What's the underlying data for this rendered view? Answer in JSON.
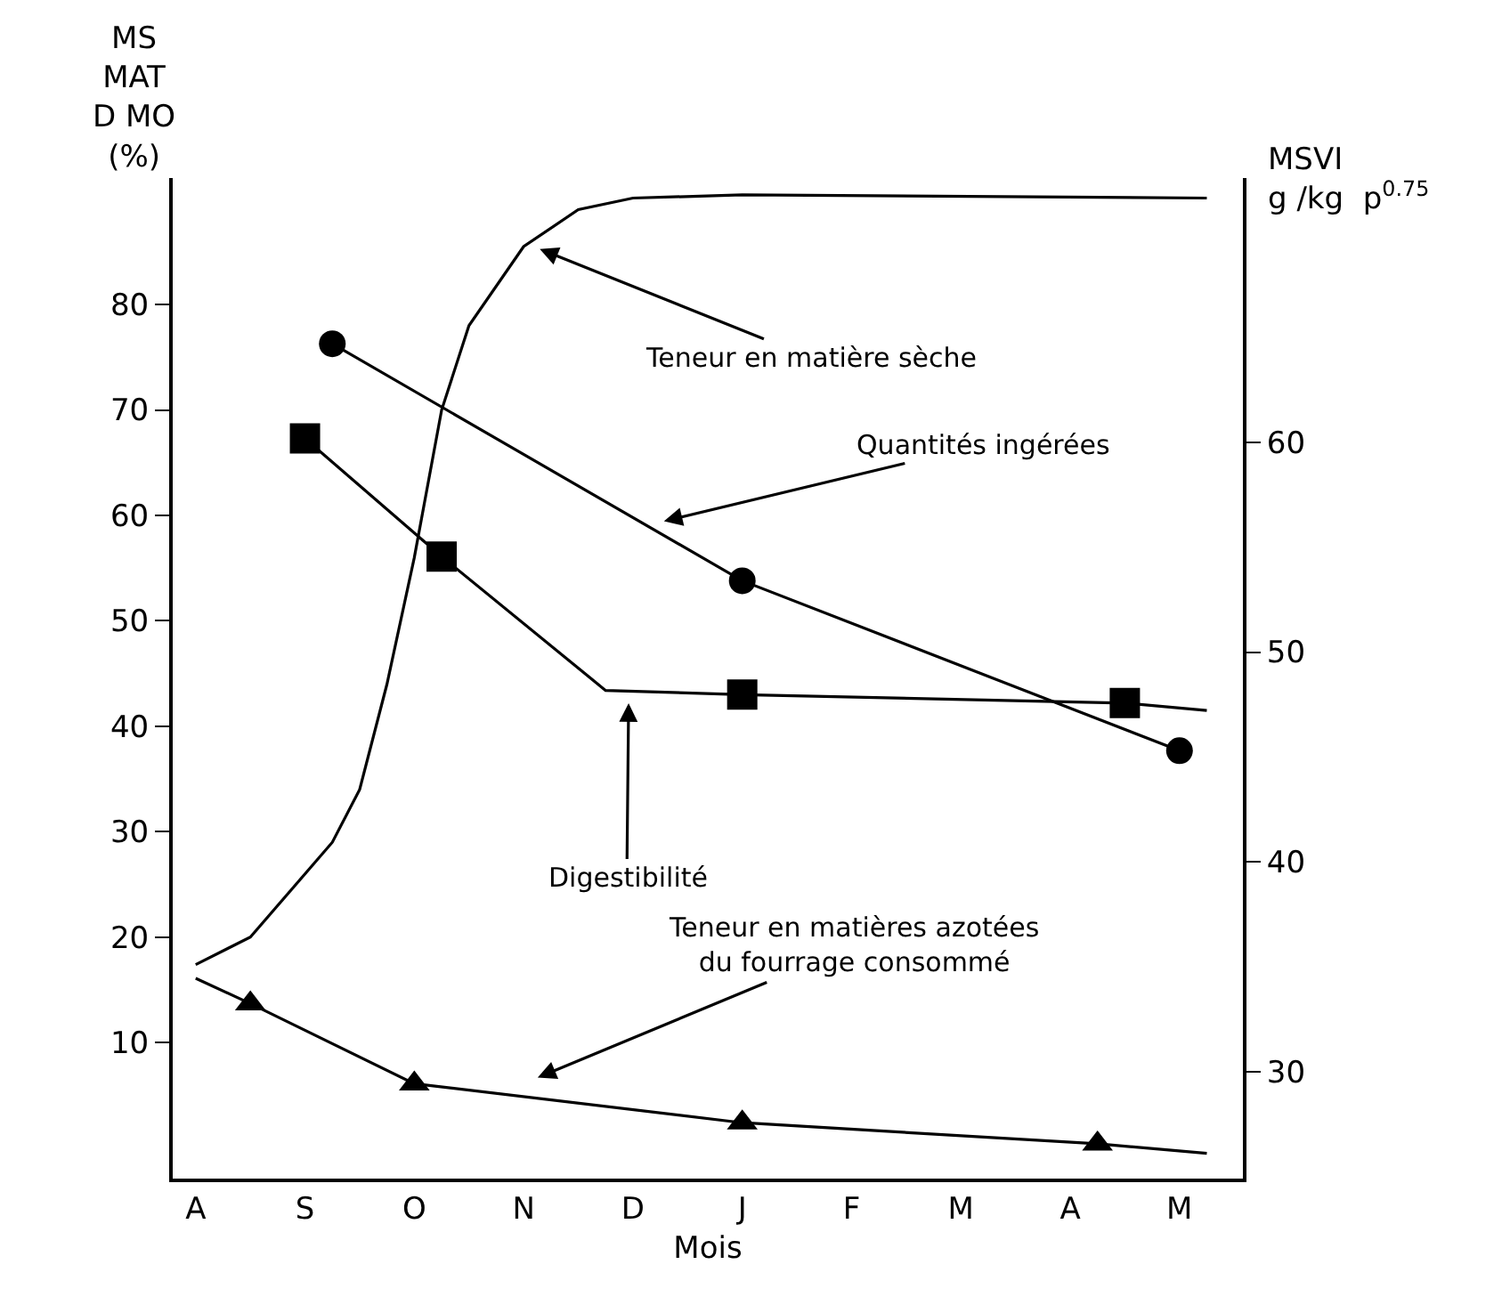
{
  "chart_data": {
    "type": "line",
    "xlabel": "Mois",
    "ylabel": "MS\nMAT\nD MO\n(%)",
    "y2label": "MSVI\ng /kg  p$^{0.75}$",
    "categories": [
      "A",
      null,
      null,
      null,
      "S",
      null,
      null,
      null,
      "O",
      null,
      null,
      null,
      "N",
      null,
      null,
      null,
      "D",
      null,
      null,
      null,
      "J",
      null,
      null,
      null,
      "F",
      null,
      null,
      null,
      "M",
      null,
      null,
      null,
      "A",
      null,
      null,
      null,
      "M",
      null,
      null
    ],
    "ylim": [
      -2.9,
      92
    ],
    "yticks": [
      10,
      20,
      30,
      40,
      50,
      60,
      70,
      80
    ],
    "y2lim": [
      24.9,
      72.6
    ],
    "y2ticks": [
      30,
      40,
      50,
      60
    ],
    "series": [
      {
        "marker": "none",
        "color": "#000000",
        "values": [
          17.4,
          null,
          20.0,
          23.0,
          26.0,
          29.0,
          34.0,
          44.0,
          56.0,
          70.0,
          78.0,
          null,
          85.5,
          null,
          89.0,
          null,
          90.1,
          null,
          null,
          null,
          90.4,
          null,
          null,
          null,
          null,
          null,
          null,
          null,
          null,
          null,
          null,
          null,
          null,
          null,
          null,
          null,
          null,
          90.1,
          null
        ]
      },
      {
        "marker": "circle",
        "axis": "y2",
        "color": "#000000",
        "values": [
          null,
          null,
          null,
          null,
          null,
          64.7,
          null,
          null,
          null,
          null,
          null,
          null,
          null,
          null,
          null,
          null,
          null,
          null,
          null,
          null,
          53.4,
          null,
          null,
          null,
          null,
          null,
          null,
          null,
          null,
          null,
          null,
          null,
          null,
          null,
          null,
          null,
          45.3,
          null,
          null
        ]
      },
      {
        "marker": "none",
        "color": "#000000",
        "values": [
          null,
          null,
          null,
          null,
          67.3,
          null,
          null,
          null,
          null,
          56.1,
          null,
          null,
          null,
          null,
          null,
          43.4,
          null,
          null,
          null,
          null,
          43.0,
          null,
          null,
          null,
          null,
          null,
          null,
          null,
          null,
          null,
          null,
          null,
          null,
          null,
          42.2,
          null,
          null,
          41.5,
          null
        ]
      },
      {
        "type": "scatter",
        "marker": "square",
        "color": "#000000",
        "values": [
          null,
          null,
          null,
          null,
          67.3,
          null,
          null,
          null,
          null,
          56.1,
          null,
          null,
          null,
          null,
          null,
          null,
          null,
          null,
          null,
          null,
          43.0,
          null,
          null,
          null,
          null,
          null,
          null,
          null,
          null,
          null,
          null,
          null,
          null,
          null,
          42.2,
          null,
          null,
          null,
          null
        ]
      },
      {
        "marker": "none",
        "color": "#000000",
        "values": [
          16.1,
          null,
          13.7,
          null,
          null,
          null,
          null,
          null,
          6.1,
          null,
          null,
          null,
          null,
          null,
          null,
          null,
          null,
          null,
          null,
          null,
          2.4,
          null,
          null,
          null,
          null,
          null,
          null,
          null,
          null,
          null,
          null,
          null,
          null,
          0.4,
          null,
          null,
          null,
          -0.5,
          null
        ]
      },
      {
        "type": "scatter",
        "marker": "triangle",
        "color": "#000000",
        "values": [
          null,
          null,
          13.7,
          null,
          null,
          null,
          null,
          null,
          6.1,
          null,
          null,
          null,
          null,
          null,
          null,
          null,
          null,
          null,
          null,
          null,
          2.4,
          null,
          null,
          null,
          null,
          null,
          null,
          null,
          null,
          null,
          null,
          null,
          null,
          0.4,
          null,
          null,
          null,
          null,
          null
        ]
      }
    ],
    "annotations": [
      "Teneur en matière sèche",
      "Quantités ingérées",
      "Digestibilité",
      "Teneur en matières azotées\ndu fourrage consommé"
    ]
  }
}
